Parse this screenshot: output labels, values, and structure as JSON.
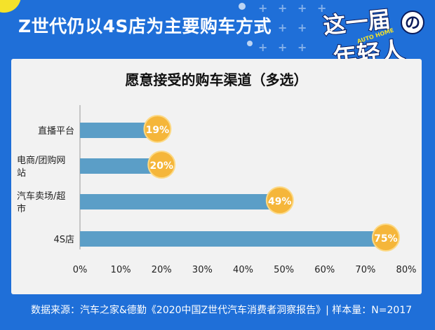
{
  "headline": "Z世代仍以4S店为主要购车方式",
  "logo": {
    "line1": "这一届",
    "line2": "年轻人",
    "badge": "AUTO HOME",
    "circle_char": "の"
  },
  "chart_data": {
    "type": "bar",
    "orientation": "horizontal",
    "title": "愿意接受的购车渠道（多选）",
    "categories": [
      [
        "直播平台"
      ],
      [
        "电商/团购网",
        "站"
      ],
      [
        "汽车卖场/超",
        "市"
      ],
      [
        "4S店"
      ]
    ],
    "values": [
      19,
      20,
      49,
      75
    ],
    "value_labels": [
      "19%",
      "20%",
      "49%",
      "75%"
    ],
    "xlim": [
      0,
      80
    ],
    "xticks": [
      "0%",
      "10%",
      "20%",
      "30%",
      "40%",
      "50%",
      "60%",
      "70%",
      "80%"
    ],
    "xlabel": "",
    "ylabel": "",
    "grid": false,
    "colors": {
      "bar": "#5b9ec7",
      "badge": "#f5b63a",
      "badge_stroke": "#fcd985"
    }
  },
  "footer": "数据来源：汽车之家&德勤《2020中国Z世代汽车消费者洞察报告》| 样本量：N=2017",
  "colors": {
    "background": "#1f6fd8",
    "panel": "#f2f2f2",
    "axis": "#9a9a9a"
  }
}
